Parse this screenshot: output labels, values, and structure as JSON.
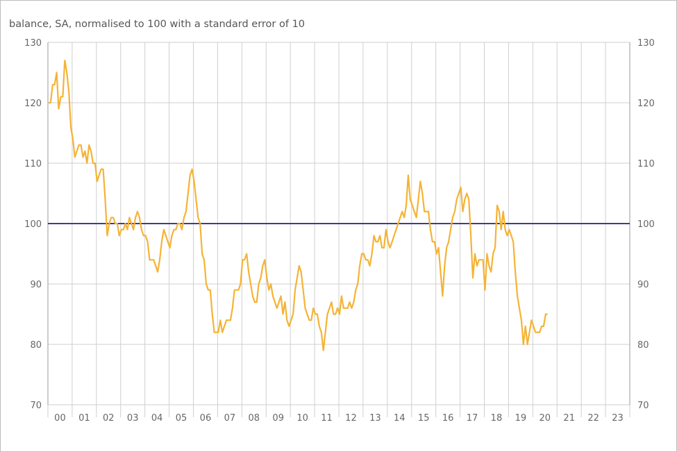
{
  "chart_data": {
    "type": "line",
    "title": "balance, SA, normalised to 100 with a standard error of 10",
    "xlabel": "",
    "ylabel": "",
    "ylim": [
      70,
      130
    ],
    "y_ticks": [
      "70",
      "80",
      "90",
      "100",
      "110",
      "120",
      "130"
    ],
    "x_tick_labels": [
      "00",
      "01",
      "02",
      "03",
      "04",
      "05",
      "06",
      "07",
      "08",
      "09",
      "10",
      "11",
      "12",
      "13",
      "14",
      "15",
      "16",
      "17",
      "18",
      "19",
      "20",
      "21",
      "22",
      "23"
    ],
    "x_start": "2000-01",
    "frequency": "monthly",
    "grid": true,
    "legend": "none",
    "reference_line": {
      "value": 100,
      "color": "#3d3b8e"
    },
    "line_color": "#f5b335",
    "series": [
      {
        "values": [
          120,
          120,
          123,
          123,
          125,
          119,
          121,
          121,
          127,
          125,
          122,
          116,
          114,
          111,
          112,
          113,
          113,
          111,
          112,
          110,
          113,
          112,
          110,
          110,
          107,
          108,
          109,
          109,
          104,
          98,
          100,
          101,
          101,
          100,
          100,
          98,
          99,
          99,
          100,
          99,
          101,
          100,
          99,
          101,
          102,
          101,
          99,
          98,
          98,
          97,
          94,
          94,
          94,
          93,
          92,
          94,
          97,
          99,
          98,
          97,
          96,
          98,
          99,
          99,
          100,
          100,
          99,
          101,
          102,
          105,
          108,
          109,
          107,
          104,
          101,
          100,
          95,
          94,
          90,
          89,
          89,
          85,
          82,
          82,
          82,
          84,
          82,
          83,
          84,
          84,
          84,
          86,
          89,
          89,
          89,
          90,
          94,
          94,
          95,
          92,
          90,
          88,
          87,
          87,
          90,
          91,
          93,
          94,
          91,
          89,
          90,
          88,
          87,
          86,
          87,
          88,
          85,
          87,
          84,
          83,
          84,
          85,
          89,
          91,
          93,
          92,
          89,
          86,
          85,
          84,
          84,
          86,
          85,
          85,
          83,
          82,
          79,
          82,
          85,
          86,
          87,
          85,
          85,
          86,
          85,
          88,
          86,
          86,
          86,
          87,
          86,
          87,
          89,
          90,
          93,
          95,
          95,
          94,
          94,
          93,
          95,
          98,
          97,
          97,
          98,
          96,
          96,
          99,
          97,
          96,
          97,
          98,
          99,
          100,
          101,
          102,
          101,
          103,
          108,
          104,
          103,
          102,
          101,
          104,
          107,
          105,
          102,
          102,
          102,
          99,
          97,
          97,
          95,
          96,
          92,
          88,
          93,
          96,
          97,
          99,
          101,
          102,
          104,
          105,
          106,
          102,
          104,
          105,
          104,
          98,
          91,
          95,
          93,
          94,
          94,
          94,
          89,
          95,
          93,
          92,
          95,
          96,
          103,
          102,
          99,
          102,
          99,
          98,
          99,
          98,
          97,
          92,
          88,
          86,
          84,
          80,
          83,
          80,
          82,
          84,
          83,
          82,
          82,
          82,
          83,
          83,
          85,
          85
        ]
      }
    ]
  }
}
